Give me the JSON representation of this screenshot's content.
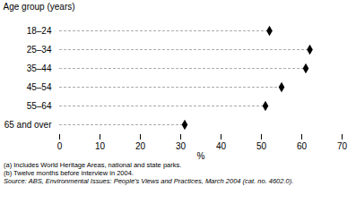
{
  "chart_data": {
    "type": "dot",
    "orientation": "horizontal",
    "categories": [
      "18–24",
      "25–34",
      "35–44",
      "45–54",
      "55–64",
      "65 and over"
    ],
    "values": [
      52,
      62,
      61,
      55,
      51,
      31
    ],
    "color": "#000000",
    "marker": "diamond",
    "xlabel": "%",
    "ylabel": "Age group (years)",
    "xlim": [
      0,
      70
    ],
    "xticks": [
      0,
      10,
      20,
      30,
      40,
      50,
      60,
      70
    ],
    "annotations": [
      "(a) Includes World Heritage Areas, national and state parks.",
      "(b) Twelve months before interview in 2004.",
      "Source: ABS, Environmental Issues: People's Views and Practices, March 2004 (cat. no. 4602.0)."
    ]
  }
}
